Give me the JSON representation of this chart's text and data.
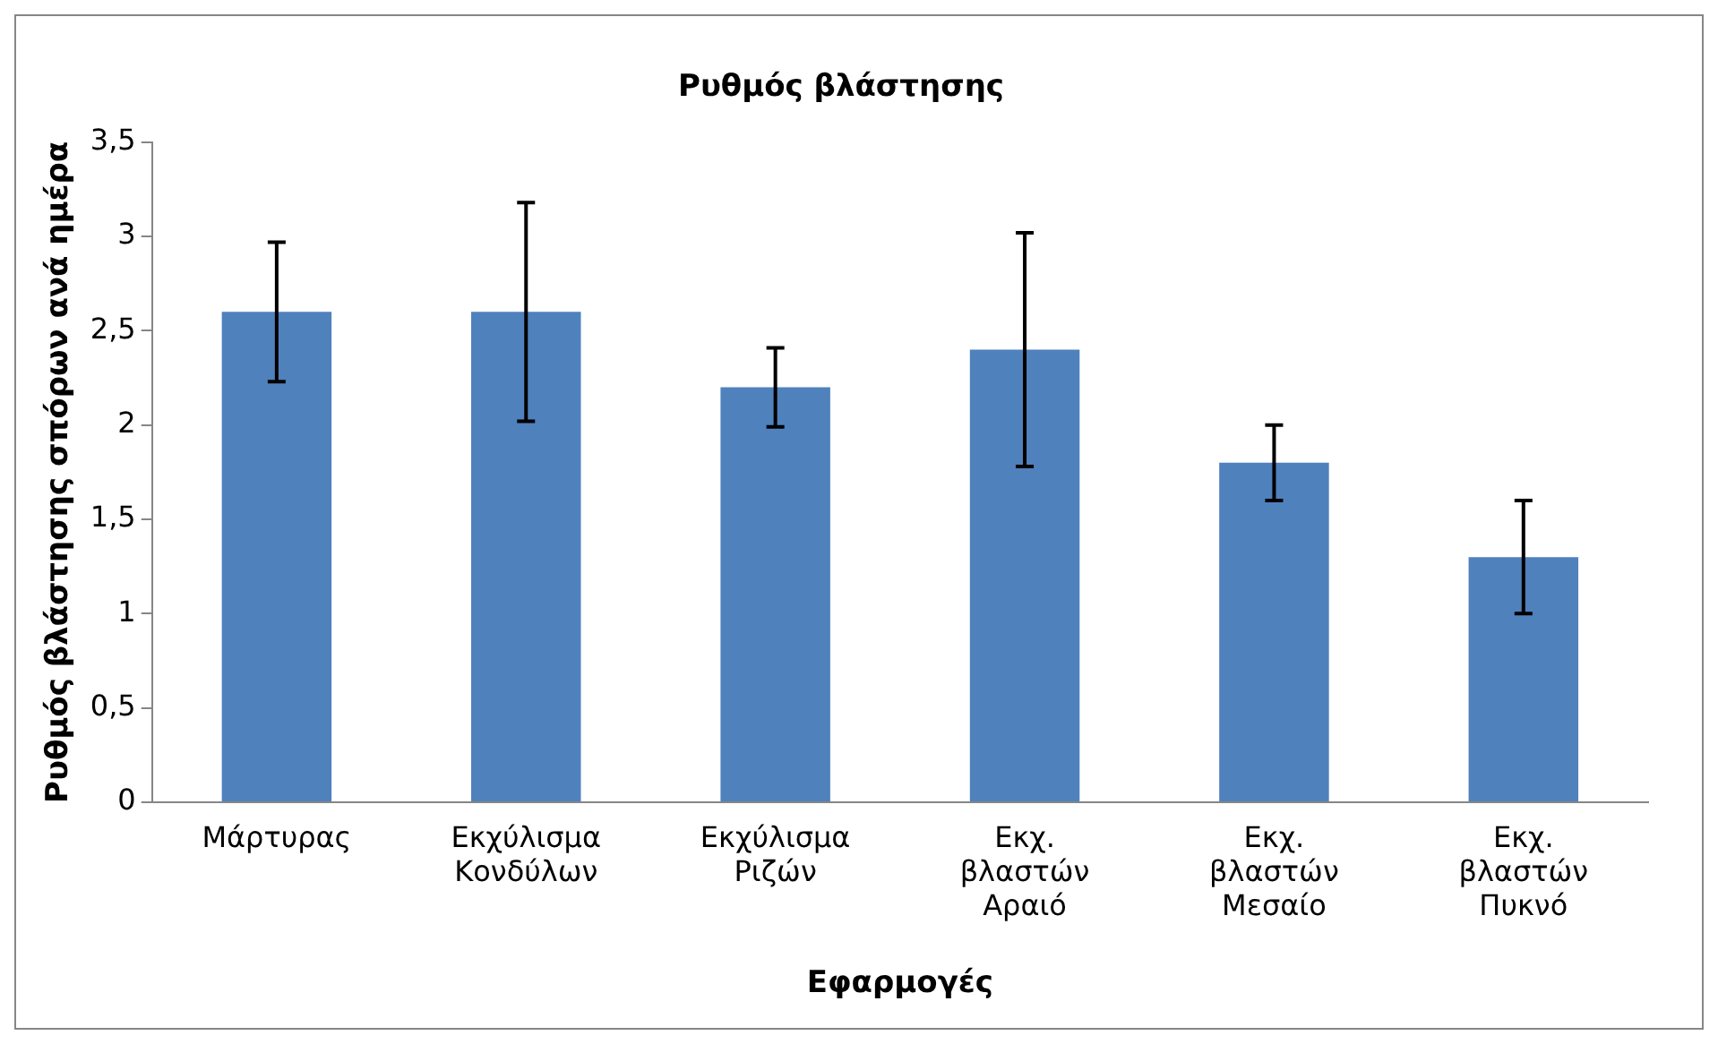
{
  "chart_data": {
    "type": "bar",
    "title": "Ρυθμός βλάστησης",
    "xlabel": "Εφαρμογές",
    "ylabel": "Ρυθμός βλάστησης σπόρων ανά ημέρα",
    "categories": [
      "Μάρτυρας",
      "Εκχύλισμα Κονδύλων",
      "Εκχύλισμα Ριζών",
      "Εκχ. βλαστών Αραιό",
      "Εκχ. βλαστών Μεσαίο",
      "Εκχ. βλαστών Πυκνό"
    ],
    "values": [
      2.6,
      2.6,
      2.2,
      2.4,
      1.8,
      1.3
    ],
    "errors": [
      0.37,
      0.58,
      0.21,
      0.62,
      0.2,
      0.3
    ],
    "color": "#4f81bd",
    "ylim": [
      0,
      3.5
    ],
    "yticks": [
      {
        "value": 0,
        "label": "0"
      },
      {
        "value": 0.5,
        "label": "0,5"
      },
      {
        "value": 1,
        "label": "1"
      },
      {
        "value": 1.5,
        "label": "1,5"
      },
      {
        "value": 2,
        "label": "2"
      },
      {
        "value": 2.5,
        "label": "2,5"
      },
      {
        "value": 3,
        "label": "3"
      },
      {
        "value": 3.5,
        "label": "3,5"
      }
    ],
    "grid": false,
    "legend": false
  }
}
